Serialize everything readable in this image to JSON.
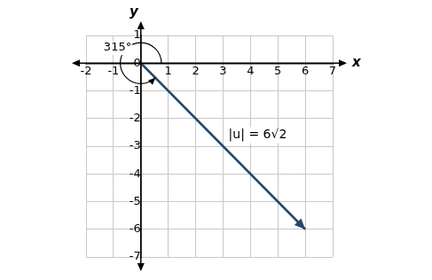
{
  "chart_data": {
    "type": "vector",
    "x": [
      0,
      6
    ],
    "values": [
      0,
      -6
    ],
    "color": "#24496b",
    "xlim": [
      -2,
      7
    ],
    "ylim": [
      -7,
      1
    ],
    "xticks": [
      -2,
      -1,
      1,
      2,
      3,
      4,
      5,
      6,
      7
    ],
    "yticks": [
      -7,
      -6,
      -5,
      -4,
      -3,
      -2,
      -1,
      0,
      1
    ],
    "grid": true,
    "x_label": "x",
    "y_label": "y",
    "angle": {
      "value": 315,
      "label": "315°",
      "x": -0.85,
      "y": 0.55
    },
    "annotations": [
      {
        "text": "|u| = 6√2",
        "x": 3.2,
        "y": -2.6
      }
    ]
  }
}
